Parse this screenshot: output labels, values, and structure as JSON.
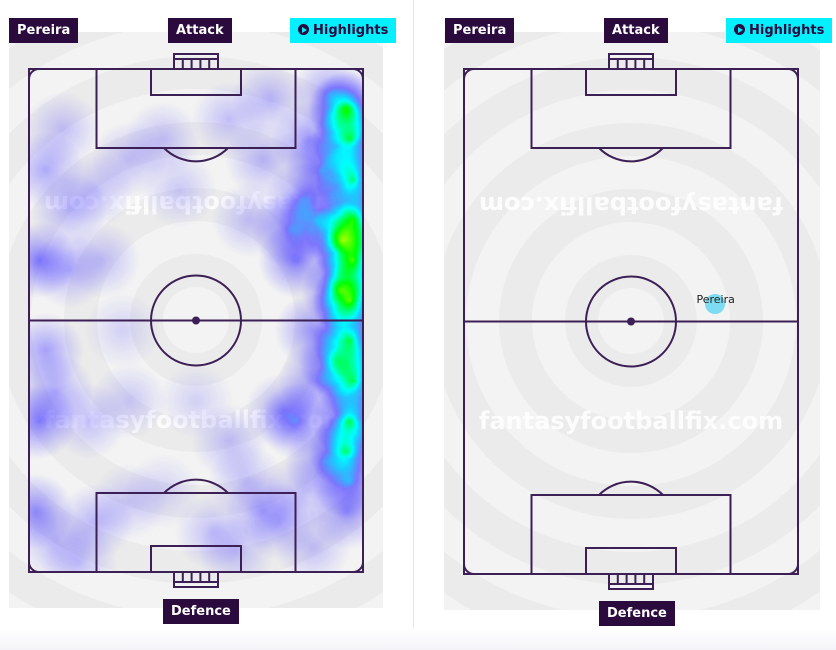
{
  "left_panel": {
    "player_label": "Pereira",
    "top_label": "Attack",
    "bottom_label": "Defence",
    "highlights_label": "Highlights",
    "watermark": "fantasyfootballfix.com",
    "view": "heatmap",
    "heat_points": [
      [
        95,
        8,
        1
      ],
      [
        96,
        14,
        1
      ],
      [
        97,
        22,
        1
      ],
      [
        97,
        30,
        1
      ],
      [
        97,
        38,
        1
      ],
      [
        96,
        46,
        1
      ],
      [
        96,
        54,
        1
      ],
      [
        97,
        62,
        1
      ],
      [
        96,
        70,
        1
      ],
      [
        95,
        76,
        0.8
      ],
      [
        94,
        34,
        0.9
      ],
      [
        93,
        44,
        0.8
      ],
      [
        88,
        20,
        0.6
      ],
      [
        86,
        30,
        0.5
      ],
      [
        84,
        14,
        0.5
      ],
      [
        80,
        38,
        0.6
      ],
      [
        78,
        32,
        0.5
      ],
      [
        82,
        26,
        0.55
      ],
      [
        85,
        52,
        0.5
      ],
      [
        86,
        62,
        0.5
      ],
      [
        80,
        70,
        0.55
      ],
      [
        76,
        68,
        0.4
      ],
      [
        96,
        82,
        0.6
      ],
      [
        95,
        88,
        0.5
      ],
      [
        92,
        58,
        0.55
      ],
      [
        90,
        5,
        0.45
      ],
      [
        72,
        6,
        0.35
      ],
      [
        60,
        10,
        0.3
      ],
      [
        40,
        14,
        0.3
      ],
      [
        30,
        18,
        0.3
      ],
      [
        10,
        12,
        0.3
      ],
      [
        5,
        20,
        0.4
      ],
      [
        12,
        28,
        0.35
      ],
      [
        20,
        24,
        0.3
      ],
      [
        45,
        24,
        0.25
      ],
      [
        66,
        30,
        0.3
      ],
      [
        70,
        18,
        0.35
      ],
      [
        3,
        38,
        0.6
      ],
      [
        12,
        40,
        0.35
      ],
      [
        22,
        38,
        0.3
      ],
      [
        28,
        52,
        0.2
      ],
      [
        5,
        56,
        0.45
      ],
      [
        3,
        70,
        0.6
      ],
      [
        8,
        64,
        0.4
      ],
      [
        18,
        70,
        0.3
      ],
      [
        30,
        66,
        0.25
      ],
      [
        50,
        66,
        0.2
      ],
      [
        60,
        74,
        0.3
      ],
      [
        65,
        82,
        0.3
      ],
      [
        2,
        88,
        0.55
      ],
      [
        8,
        94,
        0.3
      ],
      [
        20,
        90,
        0.35
      ],
      [
        30,
        86,
        0.25
      ],
      [
        40,
        84,
        0.2
      ],
      [
        55,
        92,
        0.3
      ],
      [
        62,
        96,
        0.3
      ],
      [
        70,
        88,
        0.35
      ],
      [
        75,
        90,
        0.35
      ],
      [
        82,
        84,
        0.3
      ],
      [
        88,
        78,
        0.45
      ],
      [
        15,
        98,
        0.3
      ],
      [
        85,
        95,
        0.3
      ]
    ]
  },
  "right_panel": {
    "player_label": "Pereira",
    "top_label": "Attack",
    "bottom_label": "Defence",
    "highlights_label": "Highlights",
    "watermark": "fantasyfootballfix.com",
    "view": "average-position",
    "marker": {
      "label": "Pereira",
      "x": 75,
      "y": 46.5,
      "color": "#7ddcf2"
    }
  },
  "colors": {
    "pitch_line": "#3b1f55",
    "label_bg": "#2b0a3d",
    "highlights_bg": "#05f0ff"
  }
}
